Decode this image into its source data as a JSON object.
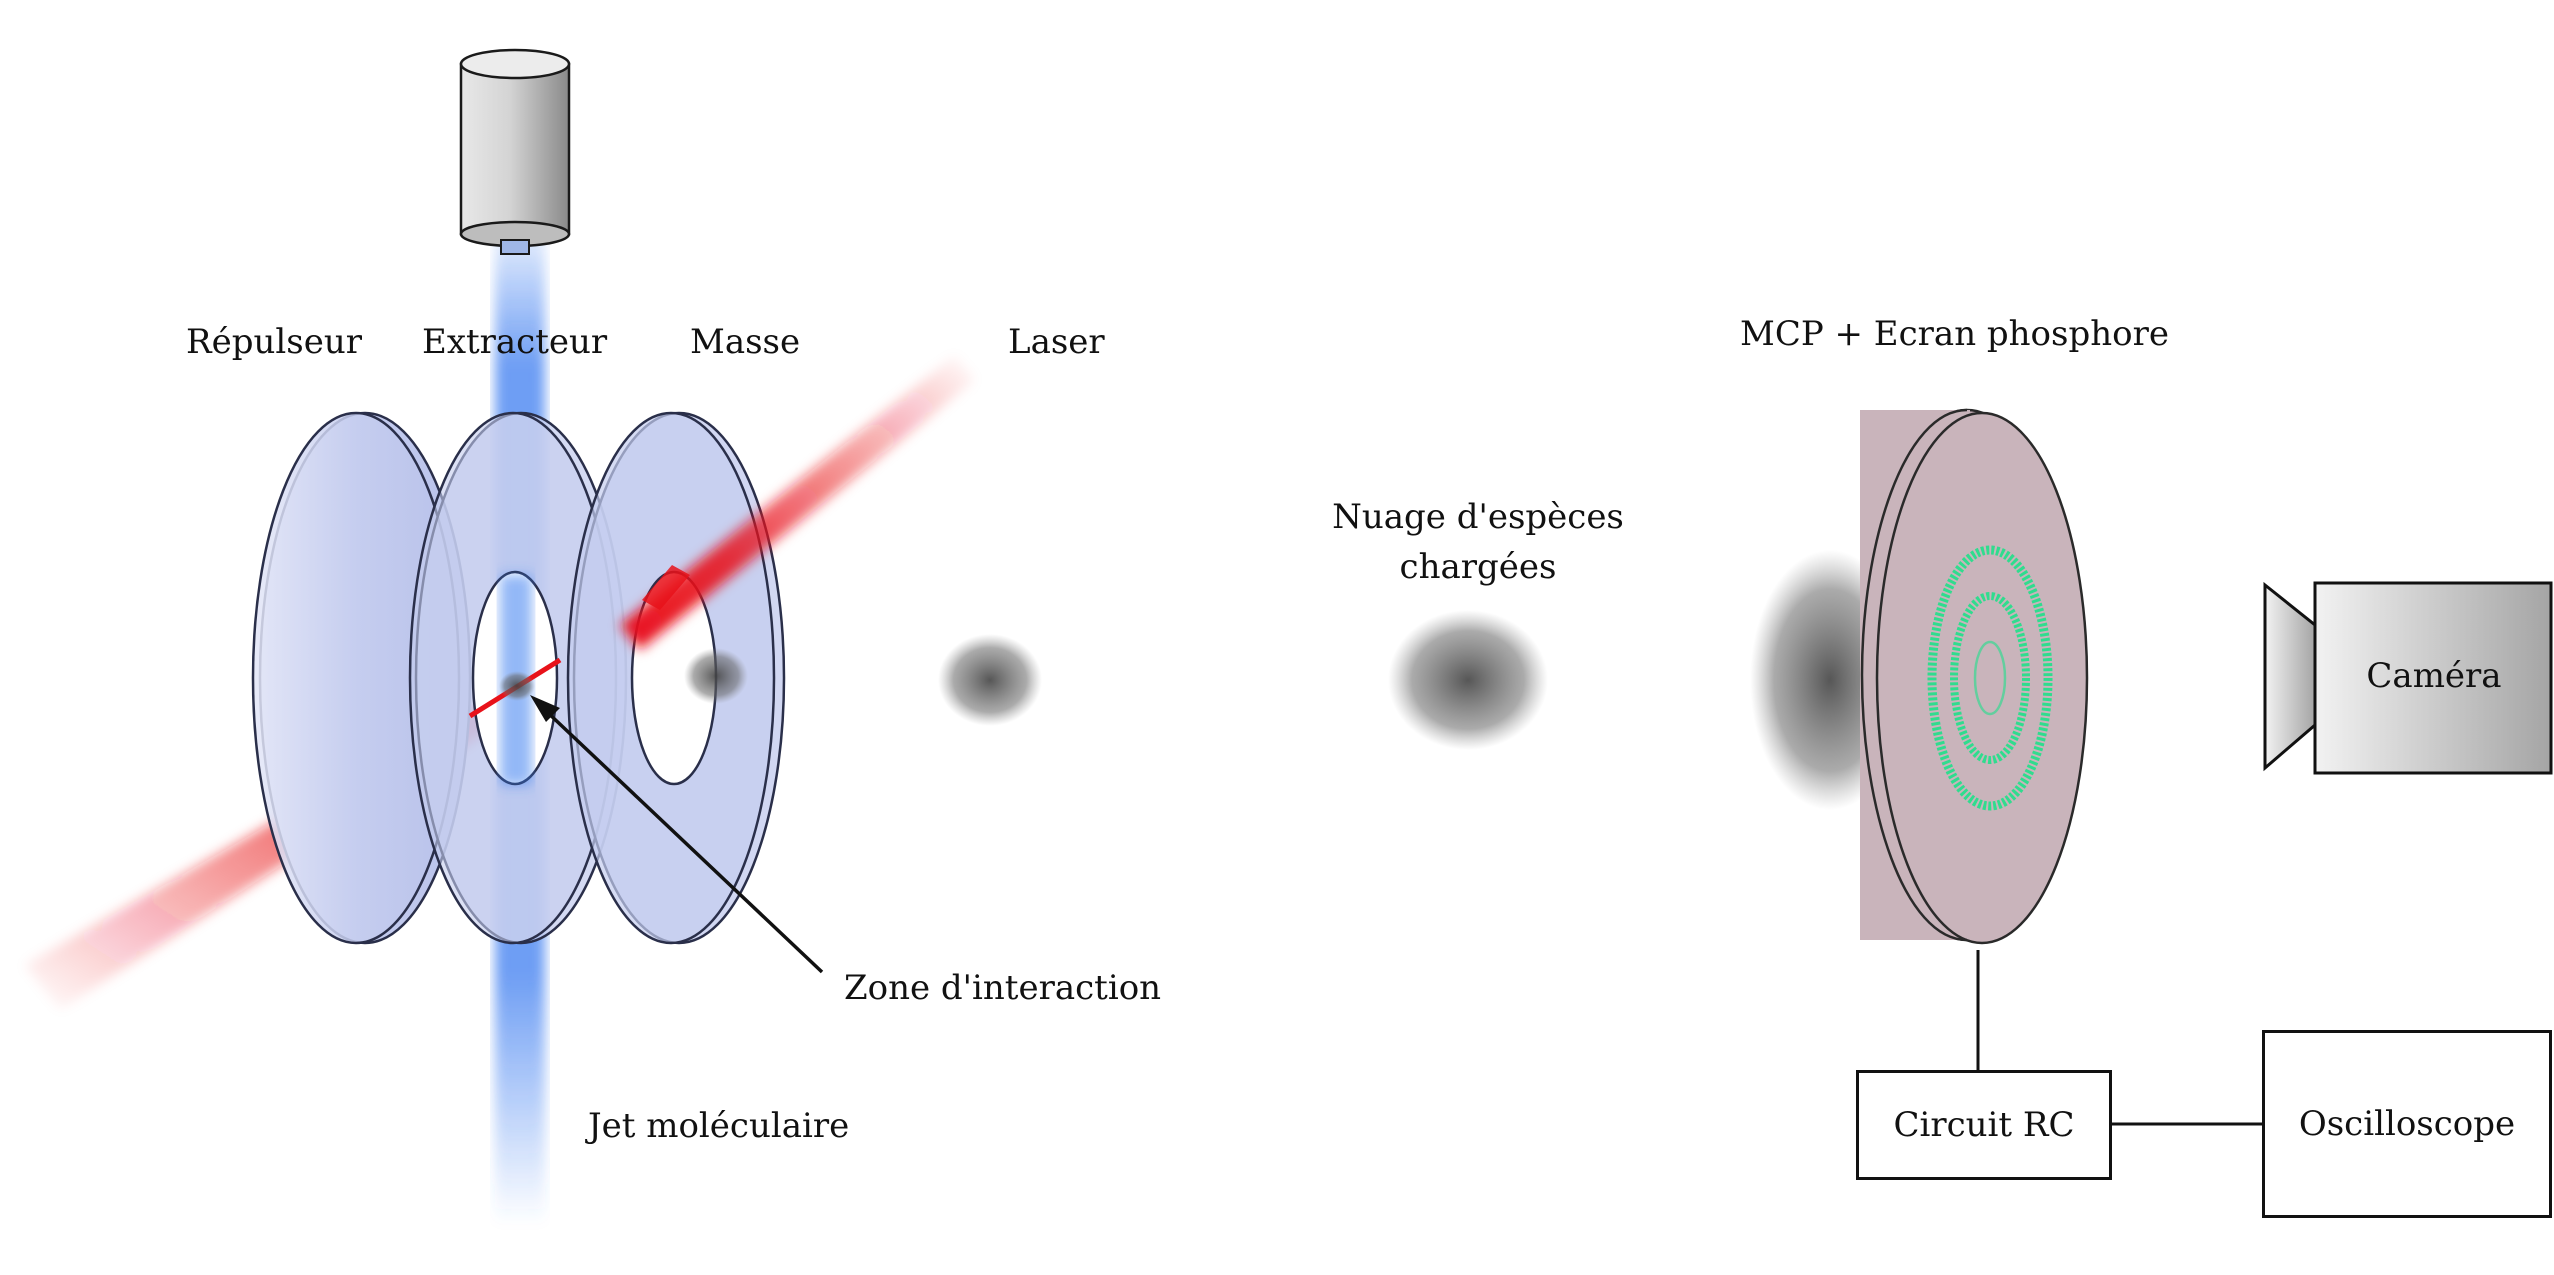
{
  "labels": {
    "repulseur": "Répulseur",
    "extracteur": "Extracteur",
    "masse": "Masse",
    "laser": "Laser",
    "mcp": "MCP + Ecran phosphore",
    "nuage_line1": "Nuage d'espèces",
    "nuage_line2": "chargées",
    "zone": "Zone d'interaction",
    "jet": "Jet moléculaire",
    "camera": "Caméra",
    "circuit": "Circuit RC",
    "oscilloscope": "Oscilloscope"
  },
  "colors": {
    "plate_fill": "#c5cdef",
    "plate_stroke": "#2a2f4a",
    "laser_red": "#e8121a",
    "jet_blue": "#3d7df0",
    "mcp_fill": "#c9b4bb",
    "ring_green": "#1fe08a",
    "cloud_gray": "#555555"
  }
}
